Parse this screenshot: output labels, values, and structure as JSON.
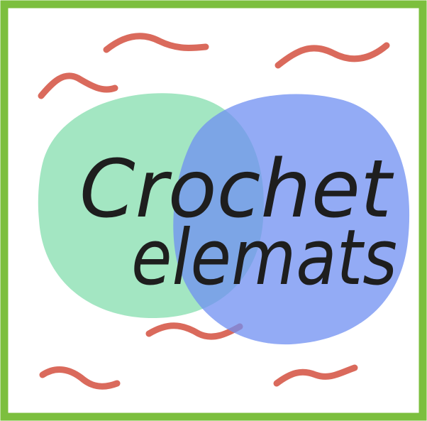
{
  "logo": {
    "title": "Crochet",
    "subtitle": "elemats"
  }
}
